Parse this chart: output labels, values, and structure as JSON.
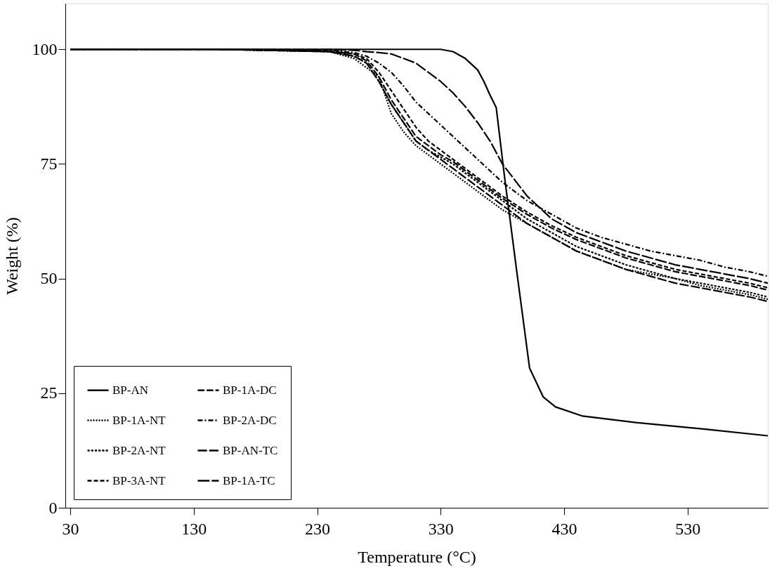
{
  "chart_data": {
    "type": "line",
    "xlabel": "Temperature (°C)",
    "ylabel": "Weight (%)",
    "x": [
      30,
      150,
      240,
      260,
      270,
      280,
      290,
      300,
      310,
      320,
      330,
      340,
      350,
      360,
      370,
      380,
      400,
      420,
      440,
      460,
      480,
      500,
      520,
      540,
      560,
      580,
      595
    ],
    "series": [
      {
        "name": "BP-AN",
        "color": "#000000",
        "line_style": "solid",
        "x": [
          30,
          200,
          300,
          330,
          340,
          350,
          360,
          365,
          370,
          375,
          382,
          392,
          402,
          413,
          423,
          445,
          488,
          546,
          595
        ],
        "values": [
          100,
          100,
          100,
          100,
          99.5,
          98,
          95.5,
          93,
          90,
          87.3,
          71.6,
          50.8,
          30.5,
          24.2,
          22,
          20,
          18.6,
          17.1,
          15.7
        ]
      },
      {
        "name": "BP-1A-NT",
        "color": "#000000",
        "line_style": "dotted",
        "values": [
          100,
          100,
          99.5,
          98,
          96,
          94,
          86,
          82,
          79,
          77,
          75,
          73,
          71,
          69,
          67,
          65,
          62,
          59,
          56,
          54,
          52,
          51,
          50,
          48.5,
          47.5,
          46.5,
          45.5
        ]
      },
      {
        "name": "BP-2A-NT",
        "color": "#000000",
        "line_style": "dotted",
        "values": [
          100,
          100,
          99.5,
          98.5,
          97,
          93,
          88,
          84,
          80,
          78,
          76.5,
          75,
          73,
          71,
          69,
          67,
          63,
          60,
          57,
          55,
          53,
          51.5,
          50,
          49,
          48,
          47,
          46
        ]
      },
      {
        "name": "BP-3A-NT",
        "color": "#000000",
        "line_style": "dashed",
        "values": [
          100,
          100,
          99.7,
          99,
          98,
          95,
          91,
          87,
          83,
          80,
          78,
          76,
          74,
          72,
          70,
          68,
          64.5,
          61.5,
          59,
          57,
          55,
          53.5,
          52,
          51,
          50,
          49,
          48
        ]
      },
      {
        "name": "BP-1A-DC",
        "color": "#000000",
        "line_style": "dashed",
        "values": [
          100,
          100,
          99.6,
          99,
          97.5,
          94,
          89,
          85,
          81,
          79,
          77,
          75.5,
          73.5,
          71.5,
          69.5,
          67.5,
          64,
          61,
          58.5,
          56.5,
          54.5,
          53,
          51.5,
          50.5,
          49.5,
          48.5,
          47.5
        ]
      },
      {
        "name": "BP-2A-DC",
        "color": "#000000",
        "line_style": "dashdot",
        "values": [
          100,
          100,
          99.8,
          99.3,
          98.5,
          97,
          95,
          92,
          88.5,
          86,
          83.5,
          81,
          78.5,
          76,
          73.5,
          71,
          67,
          64,
          61,
          59,
          57.5,
          56,
          55,
          54,
          52.5,
          51.5,
          50.5
        ]
      },
      {
        "name": "BP-AN-TC",
        "color": "#000000",
        "line_style": "dashed",
        "values": [
          100,
          100,
          99.5,
          98.5,
          97,
          93,
          88,
          84,
          80,
          78,
          76,
          74,
          72,
          70,
          68,
          66,
          62,
          59,
          56,
          54,
          52,
          50.5,
          49,
          48,
          47,
          46,
          45
        ]
      },
      {
        "name": "BP-1A-TC",
        "color": "#000000",
        "line_style": "dashed",
        "values": [
          100,
          100,
          100,
          99.8,
          99.5,
          99.3,
          99,
          98,
          97,
          95,
          93,
          90.5,
          87.5,
          84,
          80,
          75,
          68,
          63,
          60,
          58,
          56,
          54.5,
          53,
          52,
          51,
          50,
          49
        ]
      }
    ],
    "xlim": [
      26,
      595
    ],
    "xticks": [
      30,
      130,
      230,
      330,
      430,
      530
    ],
    "ylim": [
      0,
      110
    ],
    "yticks": [
      0,
      25,
      50,
      75,
      100
    ],
    "grid": false,
    "legend": "bottom left"
  }
}
